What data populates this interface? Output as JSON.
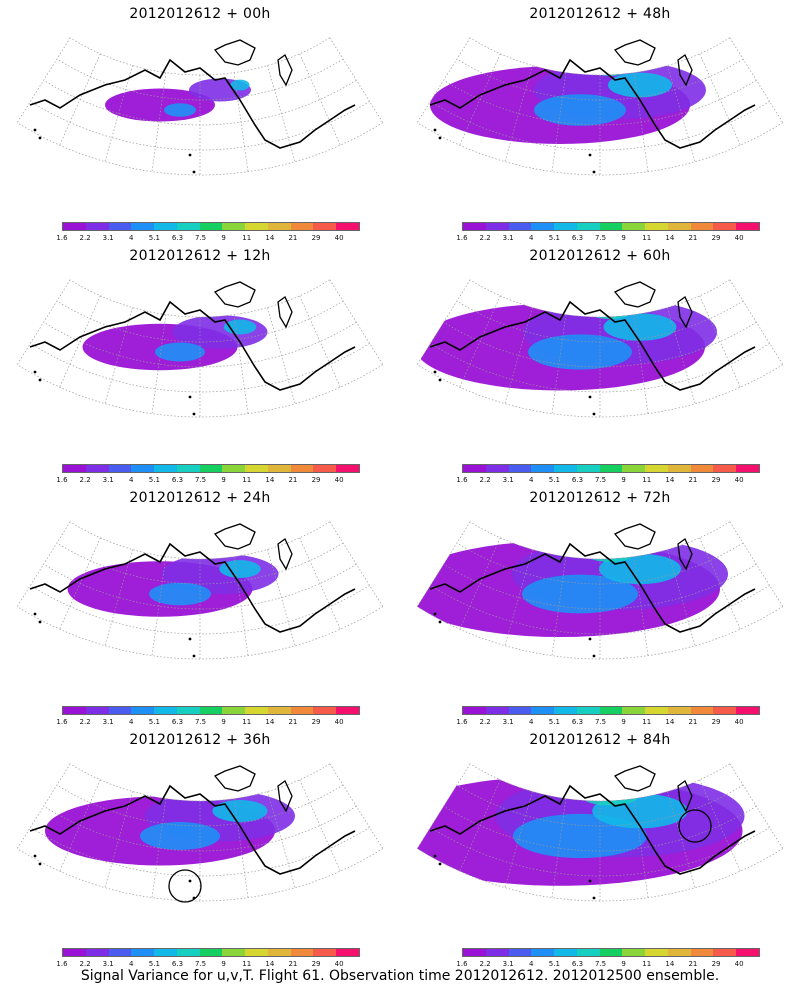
{
  "panels": [
    {
      "title": "2012012612 + 00h",
      "level": 0.1
    },
    {
      "title": "2012012612 + 48h",
      "level": 0.6
    },
    {
      "title": "2012012612 + 12h",
      "level": 0.25
    },
    {
      "title": "2012012612 + 60h",
      "level": 0.7
    },
    {
      "title": "2012012612 + 24h",
      "level": 0.35
    },
    {
      "title": "2012012612 + 72h",
      "level": 0.8
    },
    {
      "title": "2012012612 + 36h",
      "level": 0.5,
      "circle": true
    },
    {
      "title": "2012012612 + 84h",
      "level": 0.95,
      "circle": true
    }
  ],
  "colorbar": {
    "labels": [
      "1.6",
      "2.2",
      "3.1",
      "4",
      "5.1",
      "6.3",
      "7.5",
      "9",
      "11",
      "14",
      "21",
      "29",
      "40"
    ],
    "colors": [
      "#9a12d6",
      "#7e2ee6",
      "#4a5cf0",
      "#1e90f5",
      "#12b8e8",
      "#16cfc0",
      "#15d060",
      "#8ad63a",
      "#d6d630",
      "#e0b63a",
      "#f08a3a",
      "#f55a4a",
      "#f5106e"
    ]
  },
  "caption": "Signal Variance for u,v,T. Flight 61. Observation time 2012012612. 2012012500 ensemble."
}
